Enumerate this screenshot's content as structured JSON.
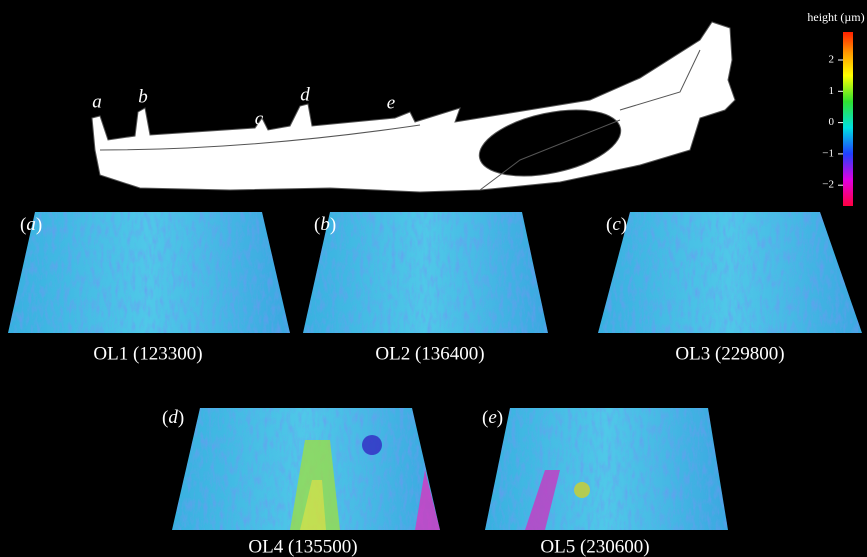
{
  "colorbar": {
    "label": "height (µm)",
    "ticks": [
      "2",
      "1",
      "0",
      "−1",
      "−2"
    ]
  },
  "jaw": {
    "tooth_labels": [
      "a",
      "b",
      "c",
      "d",
      "e"
    ]
  },
  "panels": [
    {
      "letter": "a",
      "caption": "OL1 (123300)"
    },
    {
      "letter": "b",
      "caption": "OL2 (136400)"
    },
    {
      "letter": "c",
      "caption": "OL3 (229800)"
    },
    {
      "letter": "d",
      "caption": "OL4 (135500)"
    },
    {
      "letter": "e",
      "caption": "OL5 (230600)"
    }
  ]
}
